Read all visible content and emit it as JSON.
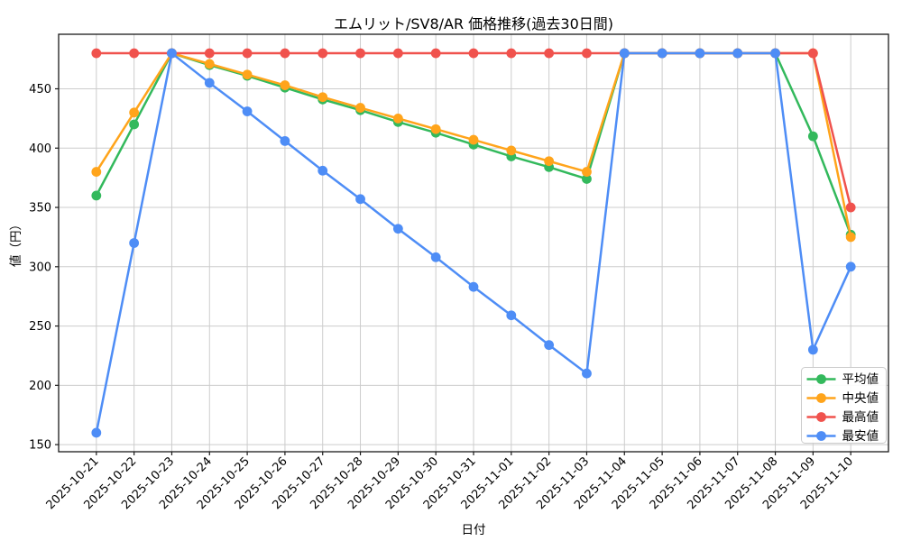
{
  "chart_data": {
    "type": "line",
    "title": "エムリット/SV8/AR 価格推移(過去30日間)",
    "xlabel": "日付",
    "ylabel": "値（円）",
    "grid": true,
    "legend_position": "lower right",
    "ylim": [
      144,
      496
    ],
    "y_ticks": [
      150,
      200,
      250,
      300,
      350,
      400,
      450
    ],
    "x_tick_labels": [
      "2025-10-21",
      "2025-10-22",
      "2025-10-23",
      "2025-10-24",
      "2025-10-25",
      "2025-10-26",
      "2025-10-27",
      "2025-10-28",
      "2025-10-29",
      "2025-10-30",
      "2025-10-31",
      "2025-11-01",
      "2025-11-02",
      "2025-11-03",
      "2025-11-04",
      "2025-11-05",
      "2025-11-06",
      "2025-11-07",
      "2025-11-08",
      "2025-11-09",
      "2025-11-10"
    ],
    "series": [
      {
        "key": "avg",
        "name": "平均値",
        "color": "#33b95c",
        "values": [
          360,
          420,
          480,
          470,
          461,
          451,
          441,
          432,
          422,
          413,
          403,
          393,
          384,
          374,
          480,
          480,
          480,
          480,
          480,
          410,
          327
        ]
      },
      {
        "key": "median",
        "name": "中央値",
        "color": "#ffa41b",
        "values": [
          380,
          430,
          480,
          471,
          462,
          453,
          443,
          434,
          425,
          416,
          407,
          398,
          389,
          380,
          480,
          480,
          480,
          480,
          480,
          480,
          325
        ]
      },
      {
        "key": "max",
        "name": "最高値",
        "color": "#f0524d",
        "values": [
          480,
          480,
          480,
          480,
          480,
          480,
          480,
          480,
          480,
          480,
          480,
          480,
          480,
          480,
          480,
          480,
          480,
          480,
          480,
          480,
          350
        ]
      },
      {
        "key": "min",
        "name": "最安値",
        "color": "#4e8df6",
        "values": [
          160,
          320,
          480,
          455,
          431,
          406,
          381,
          357,
          332,
          308,
          283,
          259,
          234,
          210,
          480,
          480,
          480,
          480,
          480,
          230,
          300
        ]
      }
    ],
    "style": {
      "grid_color": "#cccccc",
      "spine_color": "#1a1a1a",
      "text_color": "#000000",
      "legend_border": "#cccccc",
      "background": "#ffffff"
    }
  }
}
